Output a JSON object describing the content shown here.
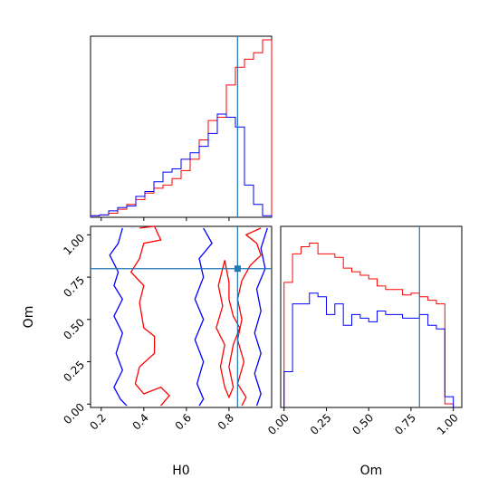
{
  "figure_type": "corner plot",
  "colors": {
    "series_a": "#ff0000",
    "series_b": "#0000ff",
    "truth": "#1f77b4"
  },
  "chart_data": [
    {
      "type": "histogram",
      "panel": "H0 marginal",
      "x_range": [
        0.15,
        1.0
      ],
      "ytick_labels": false,
      "xtick_labels": false,
      "truth_value": 0.84,
      "bin_edges": [
        0.15,
        0.1925,
        0.235,
        0.2775,
        0.32,
        0.3625,
        0.405,
        0.4475,
        0.49,
        0.5325,
        0.575,
        0.6175,
        0.66,
        0.7025,
        0.745,
        0.7875,
        0.83,
        0.8725,
        0.915,
        0.9575,
        1.0
      ],
      "series": [
        {
          "name": "",
          "color": "#ff0000",
          "values": [
            0.01,
            0.015,
            0.025,
            0.05,
            0.08,
            0.11,
            0.15,
            0.18,
            0.2,
            0.24,
            0.29,
            0.36,
            0.48,
            0.6,
            0.62,
            0.82,
            0.93,
            0.98,
            1.02,
            1.1
          ]
        },
        {
          "name": "",
          "color": "#0000ff",
          "values": [
            0.01,
            0.015,
            0.04,
            0.06,
            0.07,
            0.13,
            0.16,
            0.22,
            0.28,
            0.3,
            0.36,
            0.4,
            0.44,
            0.52,
            0.64,
            0.62,
            0.56,
            0.2,
            0.08,
            0.01
          ]
        }
      ]
    },
    {
      "type": "contour",
      "panel": "H0 vs Om",
      "x_label": "H0",
      "y_label": "Om",
      "x_range": [
        0.15,
        1.0
      ],
      "y_range": [
        -0.02,
        1.05
      ],
      "x_ticks": [
        "0.2",
        "0.4",
        "0.6",
        "0.8"
      ],
      "x_tick_values": [
        0.2,
        0.4,
        0.6,
        0.8
      ],
      "y_ticks": [
        "0.00",
        "0.25",
        "0.50",
        "0.75",
        "1.00"
      ],
      "y_tick_values": [
        0.0,
        0.25,
        0.5,
        0.75,
        1.0
      ],
      "truth_point": [
        0.84,
        0.8
      ],
      "contours": [
        {
          "color": "#ff0000",
          "level": "outer",
          "path": [
            [
              0.38,
              1.04
            ],
            [
              0.45,
              1.05
            ],
            [
              0.48,
              0.97
            ],
            [
              0.4,
              0.95
            ],
            [
              0.38,
              0.86
            ],
            [
              0.34,
              0.78
            ],
            [
              0.4,
              0.7
            ],
            [
              0.38,
              0.6
            ],
            [
              0.4,
              0.45
            ],
            [
              0.45,
              0.4
            ],
            [
              0.45,
              0.3
            ],
            [
              0.38,
              0.22
            ],
            [
              0.36,
              0.12
            ],
            [
              0.4,
              0.06
            ],
            [
              0.48,
              0.1
            ],
            [
              0.52,
              0.05
            ],
            [
              0.48,
              -0.01
            ]
          ]
        },
        {
          "color": "#ff0000",
          "level": "outer",
          "path": [
            [
              0.95,
              1.04
            ],
            [
              0.88,
              1.0
            ],
            [
              0.93,
              0.95
            ],
            [
              0.95,
              0.88
            ],
            [
              0.9,
              0.82
            ],
            [
              0.86,
              0.73
            ],
            [
              0.84,
              0.62
            ],
            [
              0.86,
              0.5
            ],
            [
              0.84,
              0.38
            ],
            [
              0.87,
              0.25
            ],
            [
              0.84,
              0.12
            ],
            [
              0.88,
              0.04
            ],
            [
              0.86,
              -0.01
            ]
          ]
        },
        {
          "color": "#ff0000",
          "level": "inner",
          "path": [
            [
              0.78,
              0.85
            ],
            [
              0.8,
              0.72
            ],
            [
              0.8,
              0.62
            ],
            [
              0.82,
              0.52
            ],
            [
              0.85,
              0.45
            ],
            [
              0.82,
              0.35
            ],
            [
              0.8,
              0.22
            ],
            [
              0.82,
              0.1
            ],
            [
              0.8,
              0.04
            ],
            [
              0.78,
              0.1
            ],
            [
              0.76,
              0.22
            ],
            [
              0.78,
              0.35
            ],
            [
              0.74,
              0.45
            ],
            [
              0.77,
              0.58
            ],
            [
              0.75,
              0.7
            ],
            [
              0.78,
              0.85
            ]
          ]
        },
        {
          "color": "#0000ff",
          "level": "outer",
          "path": [
            [
              0.3,
              1.04
            ],
            [
              0.28,
              0.95
            ],
            [
              0.24,
              0.88
            ],
            [
              0.28,
              0.78
            ],
            [
              0.26,
              0.7
            ],
            [
              0.3,
              0.62
            ],
            [
              0.26,
              0.52
            ],
            [
              0.3,
              0.42
            ],
            [
              0.27,
              0.3
            ],
            [
              0.3,
              0.2
            ],
            [
              0.26,
              0.1
            ],
            [
              0.29,
              0.03
            ],
            [
              0.32,
              -0.01
            ]
          ]
        },
        {
          "color": "#0000ff",
          "level": "outer",
          "path": [
            [
              0.68,
              1.04
            ],
            [
              0.72,
              0.95
            ],
            [
              0.66,
              0.86
            ],
            [
              0.68,
              0.75
            ],
            [
              0.64,
              0.62
            ],
            [
              0.68,
              0.5
            ],
            [
              0.64,
              0.38
            ],
            [
              0.68,
              0.25
            ],
            [
              0.65,
              0.12
            ],
            [
              0.68,
              0.03
            ],
            [
              0.66,
              -0.01
            ]
          ]
        },
        {
          "color": "#0000ff",
          "level": "inner",
          "path": [
            [
              0.98,
              1.04
            ],
            [
              0.95,
              0.92
            ],
            [
              0.97,
              0.8
            ],
            [
              0.93,
              0.68
            ],
            [
              0.95,
              0.55
            ],
            [
              0.92,
              0.42
            ],
            [
              0.95,
              0.3
            ],
            [
              0.92,
              0.18
            ],
            [
              0.95,
              0.06
            ],
            [
              0.93,
              -0.01
            ]
          ]
        }
      ]
    },
    {
      "type": "histogram",
      "panel": "Om marginal",
      "x_label": "Om",
      "x_range": [
        -0.02,
        1.05
      ],
      "x_ticks": [
        "0.00",
        "0.25",
        "0.50",
        "0.75",
        "1.00"
      ],
      "x_tick_values": [
        0.0,
        0.25,
        0.5,
        0.75,
        1.0
      ],
      "ytick_labels": false,
      "truth_value": 0.8,
      "bin_edges": [
        0.0,
        0.05,
        0.1,
        0.15,
        0.2,
        0.25,
        0.3,
        0.35,
        0.4,
        0.45,
        0.5,
        0.55,
        0.6,
        0.65,
        0.7,
        0.75,
        0.8,
        0.85,
        0.9,
        0.95,
        1.0
      ],
      "series": [
        {
          "name": "",
          "color": "#ff0000",
          "values": [
            0.7,
            0.86,
            0.9,
            0.92,
            0.86,
            0.86,
            0.84,
            0.78,
            0.76,
            0.74,
            0.72,
            0.68,
            0.66,
            0.66,
            0.63,
            0.64,
            0.62,
            0.6,
            0.58,
            0.02
          ]
        },
        {
          "name": "",
          "color": "#0000ff",
          "values": [
            0.2,
            0.58,
            0.58,
            0.64,
            0.62,
            0.52,
            0.58,
            0.46,
            0.52,
            0.5,
            0.48,
            0.54,
            0.52,
            0.52,
            0.5,
            0.5,
            0.52,
            0.46,
            0.44,
            0.06
          ]
        }
      ]
    }
  ]
}
